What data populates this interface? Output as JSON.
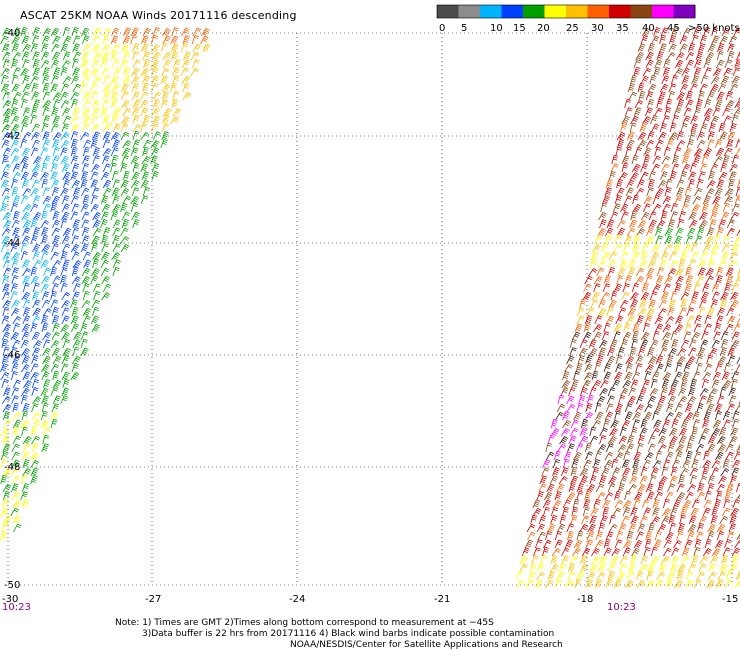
{
  "title": "ASCAT 25KM NOAA Winds 20171116 descending",
  "legend": {
    "labels": [
      "0",
      "5",
      "10",
      "15",
      "20",
      "25",
      "30",
      "35",
      "40",
      "45",
      ">50 knots"
    ],
    "colors": [
      "#4a4a4a",
      "#8c8c8c",
      "#00b4ff",
      "#0040ff",
      "#00a000",
      "#ffff00",
      "#ffc000",
      "#ff6000",
      "#d00000",
      "#8b4513",
      "#ff00ff",
      "#8000c0"
    ]
  },
  "map": {
    "lat_labels": [
      "-40",
      "-42",
      "-44",
      "-46",
      "-48",
      "-50"
    ],
    "lon_labels": [
      "-30",
      "-27",
      "-24",
      "-21",
      "-18",
      "-15"
    ],
    "time_labels": [
      "10:23",
      "10:23"
    ],
    "swath_colors": {
      "left": [
        "#ff6000",
        "#ffc000",
        "#ffff00",
        "#00a000",
        "#0040ff",
        "#00b4ff"
      ],
      "right": [
        "#d00000",
        "#8b4513",
        "#ff6000",
        "#ffc000",
        "#ffff00",
        "#ff00ff",
        "#3a1a0a",
        "#00a000"
      ]
    }
  },
  "notes": {
    "line1": "Note: 1) Times are GMT 2)Times along bottom correspond to measurement at −45S",
    "line2": "3)Data buffer is 22 hrs from 20171116 4) Black wind barbs indicate possible contamination",
    "line3": "NOAA/NESDIS/Center for Satellite Applications and Research"
  }
}
